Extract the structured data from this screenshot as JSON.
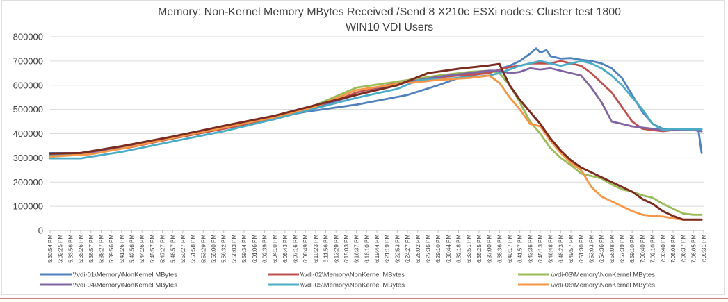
{
  "chart_data": {
    "type": "line",
    "title_lines": [
      "Memory: Non-Kernel Memory MBytes Received /Send 8 X210c ESXi nodes: Cluster test 1800",
      "WIN10 VDI Users"
    ],
    "xlabel": "",
    "ylabel": "",
    "ylim": [
      0,
      800000
    ],
    "y_ticks": [
      "0",
      "100000",
      "200000",
      "300000",
      "400000",
      "500000",
      "600000",
      "700000",
      "800000"
    ],
    "y_tick_values": [
      0,
      100000,
      200000,
      300000,
      400000,
      500000,
      600000,
      700000,
      800000
    ],
    "x_tick_labels": [
      "5:30:54 PM",
      "5:32:25 PM",
      "5:33:56 PM",
      "5:35:26 PM",
      "5:36:57 PM",
      "5:38:27 PM",
      "5:39:56 PM",
      "5:41:26 PM",
      "5:42:56 PM",
      "5:44:26 PM",
      "5:45:57 PM",
      "5:47:27 PM",
      "5:48:57 PM",
      "5:50:27 PM",
      "5:51:58 PM",
      "5:53:29 PM",
      "5:55:00 PM",
      "5:56:32 PM",
      "5:58:03 PM",
      "5:59:34 PM",
      "6:01:06 PM",
      "6:02:39 PM",
      "6:04:10 PM",
      "6:05:43 PM",
      "6:07:16 PM",
      "6:08:49 PM",
      "6:10:23 PM",
      "6:11:56 PM",
      "6:13:29 PM",
      "6:15:03 PM",
      "6:16:37 PM",
      "6:18:10 PM",
      "6:19:44 PM",
      "6:21:19 PM",
      "6:22:53 PM",
      "6:24:27 PM",
      "6:26:02 PM",
      "6:27:36 PM",
      "6:29:10 PM",
      "6:30:44 PM",
      "6:32:18 PM",
      "6:33:51 PM",
      "6:35:25 PM",
      "6:37:00 PM",
      "6:38:36 PM",
      "6:40:17 PM",
      "6:41:57 PM",
      "6:43:36 PM",
      "6:45:13 PM",
      "6:46:48 PM",
      "6:48:23 PM",
      "6:49:57 PM",
      "6:51:30 PM",
      "6:53:03 PM",
      "6:54:36 PM",
      "6:56:08 PM",
      "6:57:39 PM",
      "6:59:10 PM",
      "7:00:40 PM",
      "7:02:10 PM",
      "7:03:40 PM",
      "7:05:08 PM",
      "7:06:37 PM",
      "7:08:05 PM",
      "7:09:31 PM"
    ],
    "grid": true,
    "legend_position": "bottom",
    "series": [
      {
        "name": "\\\\vdi-01\\Memory\\NonKernel MBytes",
        "color": "#4f81bd",
        "points": [
          [
            0,
            320000
          ],
          [
            3,
            320000
          ],
          [
            6,
            340000
          ],
          [
            10,
            370000
          ],
          [
            15,
            410000
          ],
          [
            20,
            450000
          ],
          [
            25,
            490000
          ],
          [
            30,
            520000
          ],
          [
            35,
            560000
          ],
          [
            38,
            600000
          ],
          [
            40,
            630000
          ],
          [
            43,
            655000
          ],
          [
            44,
            660000
          ],
          [
            44.3,
            672000
          ],
          [
            45,
            680000
          ],
          [
            46,
            700000
          ],
          [
            47,
            730000
          ],
          [
            47.6,
            752000
          ],
          [
            48,
            735000
          ],
          [
            48.6,
            745000
          ],
          [
            49,
            720000
          ],
          [
            50,
            710000
          ],
          [
            51,
            712000
          ],
          [
            52,
            705000
          ],
          [
            53,
            700000
          ],
          [
            54,
            690000
          ],
          [
            55,
            670000
          ],
          [
            56,
            630000
          ],
          [
            57,
            560000
          ],
          [
            58,
            490000
          ],
          [
            59,
            440000
          ],
          [
            60,
            420000
          ],
          [
            61,
            415000
          ],
          [
            62,
            418000
          ],
          [
            63,
            418000
          ],
          [
            63.5,
            410000
          ],
          [
            63.8,
            320000
          ]
        ]
      },
      {
        "name": "\\\\vdi-02\\Memory\\NonKernel MBytes",
        "color": "#c0504d",
        "points": [
          [
            0,
            310000
          ],
          [
            4,
            318000
          ],
          [
            8,
            345000
          ],
          [
            12,
            380000
          ],
          [
            17,
            420000
          ],
          [
            22,
            462000
          ],
          [
            26,
            505000
          ],
          [
            30,
            570000
          ],
          [
            33,
            600000
          ],
          [
            36,
            625000
          ],
          [
            40,
            640000
          ],
          [
            43,
            650000
          ],
          [
            44,
            665000
          ],
          [
            45,
            675000
          ],
          [
            46,
            680000
          ],
          [
            47,
            690000
          ],
          [
            49,
            690000
          ],
          [
            50,
            700000
          ],
          [
            51,
            690000
          ],
          [
            52,
            680000
          ],
          [
            53,
            650000
          ],
          [
            54,
            610000
          ],
          [
            55,
            570000
          ],
          [
            56,
            510000
          ],
          [
            57,
            450000
          ],
          [
            58,
            420000
          ],
          [
            59,
            415000
          ],
          [
            60,
            410000
          ],
          [
            61,
            415000
          ],
          [
            62,
            415000
          ],
          [
            63,
            415000
          ],
          [
            63.8,
            410000
          ]
        ]
      },
      {
        "name": "\\\\vdi-03\\Memory\\NonKernel MBytes",
        "color": "#9bbb59",
        "points": [
          [
            0,
            308000
          ],
          [
            4,
            315000
          ],
          [
            8,
            348000
          ],
          [
            12,
            382000
          ],
          [
            17,
            425000
          ],
          [
            22,
            470000
          ],
          [
            26,
            518000
          ],
          [
            30,
            590000
          ],
          [
            34,
            615000
          ],
          [
            38,
            640000
          ],
          [
            41,
            655000
          ],
          [
            43,
            660000
          ],
          [
            44,
            650000
          ],
          [
            45,
            600000
          ],
          [
            46,
            530000
          ],
          [
            47,
            450000
          ],
          [
            48,
            400000
          ],
          [
            49,
            340000
          ],
          [
            50,
            300000
          ],
          [
            51,
            270000
          ],
          [
            52,
            235000
          ],
          [
            53,
            225000
          ],
          [
            54,
            215000
          ],
          [
            55,
            190000
          ],
          [
            56,
            170000
          ],
          [
            57,
            160000
          ],
          [
            58,
            145000
          ],
          [
            59,
            135000
          ],
          [
            60,
            110000
          ],
          [
            61,
            90000
          ],
          [
            62,
            70000
          ],
          [
            63,
            65000
          ],
          [
            63.8,
            65000
          ]
        ]
      },
      {
        "name": "\\\\vdi-04\\Memory\\NonKernel MBytes",
        "color": "#8064a2",
        "points": [
          [
            0,
            315000
          ],
          [
            4,
            322000
          ],
          [
            8,
            350000
          ],
          [
            12,
            386000
          ],
          [
            17,
            428000
          ],
          [
            22,
            470000
          ],
          [
            26,
            510000
          ],
          [
            30,
            560000
          ],
          [
            34,
            605000
          ],
          [
            38,
            635000
          ],
          [
            41,
            650000
          ],
          [
            43,
            660000
          ],
          [
            44,
            660000
          ],
          [
            45,
            650000
          ],
          [
            46,
            655000
          ],
          [
            47,
            670000
          ],
          [
            48,
            665000
          ],
          [
            49,
            670000
          ],
          [
            50,
            660000
          ],
          [
            51,
            650000
          ],
          [
            52,
            640000
          ],
          [
            53,
            590000
          ],
          [
            54,
            530000
          ],
          [
            55,
            450000
          ],
          [
            56,
            440000
          ],
          [
            57,
            430000
          ],
          [
            58,
            425000
          ],
          [
            59,
            420000
          ],
          [
            60,
            415000
          ],
          [
            61,
            415000
          ],
          [
            62,
            415000
          ],
          [
            63,
            415000
          ],
          [
            63.8,
            410000
          ]
        ]
      },
      {
        "name": "\\\\vdi-05\\Memory\\NonKernel MBytes",
        "color": "#4bacc6",
        "points": [
          [
            0,
            298000
          ],
          [
            3,
            298000
          ],
          [
            7,
            325000
          ],
          [
            12,
            368000
          ],
          [
            17,
            410000
          ],
          [
            22,
            460000
          ],
          [
            26,
            505000
          ],
          [
            30,
            548000
          ],
          [
            34,
            585000
          ],
          [
            36,
            620000
          ],
          [
            40,
            630000
          ],
          [
            43,
            640000
          ],
          [
            44,
            650000
          ],
          [
            45,
            665000
          ],
          [
            46,
            680000
          ],
          [
            47,
            690000
          ],
          [
            48,
            700000
          ],
          [
            49,
            690000
          ],
          [
            50,
            680000
          ],
          [
            51,
            690000
          ],
          [
            52,
            700000
          ],
          [
            53,
            690000
          ],
          [
            54,
            670000
          ],
          [
            55,
            640000
          ],
          [
            56,
            600000
          ],
          [
            57,
            550000
          ],
          [
            58,
            500000
          ],
          [
            59,
            440000
          ],
          [
            60,
            415000
          ],
          [
            61,
            420000
          ],
          [
            62,
            418000
          ],
          [
            63,
            418000
          ],
          [
            63.8,
            418000
          ]
        ]
      },
      {
        "name": "\\\\vdi-06\\Memory\\NonKernel MBytes",
        "color": "#f79646",
        "points": [
          [
            0,
            305000
          ],
          [
            4,
            315000
          ],
          [
            8,
            346000
          ],
          [
            12,
            383000
          ],
          [
            17,
            425000
          ],
          [
            22,
            468000
          ],
          [
            26,
            512000
          ],
          [
            30,
            580000
          ],
          [
            34,
            605000
          ],
          [
            35,
            618000
          ],
          [
            35.3,
            610000
          ],
          [
            38,
            622000
          ],
          [
            41,
            630000
          ],
          [
            43,
            640000
          ],
          [
            44,
            610000
          ],
          [
            45,
            550000
          ],
          [
            46,
            500000
          ],
          [
            47,
            440000
          ],
          [
            48,
            430000
          ],
          [
            49,
            370000
          ],
          [
            50,
            320000
          ],
          [
            51,
            280000
          ],
          [
            52,
            250000
          ],
          [
            53,
            180000
          ],
          [
            54,
            140000
          ],
          [
            55,
            120000
          ],
          [
            56,
            100000
          ],
          [
            57,
            80000
          ],
          [
            58,
            65000
          ],
          [
            59,
            60000
          ],
          [
            60,
            58000
          ],
          [
            61,
            50000
          ],
          [
            62,
            45000
          ],
          [
            63,
            45000
          ],
          [
            63.8,
            45000
          ]
        ]
      },
      {
        "name": "",
        "color": "#7b2c20",
        "points": [
          [
            0,
            318000
          ],
          [
            3,
            320000
          ],
          [
            7,
            348000
          ],
          [
            12,
            388000
          ],
          [
            17,
            432000
          ],
          [
            22,
            474000
          ],
          [
            26,
            518000
          ],
          [
            30,
            560000
          ],
          [
            34,
            600000
          ],
          [
            37,
            650000
          ],
          [
            40,
            668000
          ],
          [
            43,
            682000
          ],
          [
            44,
            688000
          ],
          [
            44.3,
            660000
          ],
          [
            45,
            600000
          ],
          [
            46,
            540000
          ],
          [
            47,
            490000
          ],
          [
            48,
            440000
          ],
          [
            49,
            380000
          ],
          [
            50,
            330000
          ],
          [
            51,
            290000
          ],
          [
            52,
            260000
          ],
          [
            53,
            240000
          ],
          [
            54,
            220000
          ],
          [
            55,
            200000
          ],
          [
            56,
            180000
          ],
          [
            57,
            160000
          ],
          [
            58,
            130000
          ],
          [
            59,
            110000
          ],
          [
            60,
            80000
          ],
          [
            61,
            60000
          ],
          [
            62,
            45000
          ],
          [
            63,
            45000
          ],
          [
            63.8,
            45000
          ]
        ]
      }
    ]
  }
}
